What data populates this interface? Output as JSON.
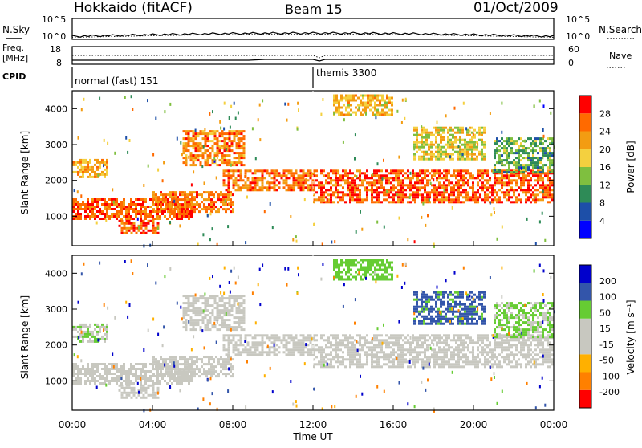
{
  "header": {
    "station": "Hokkaido (fitACF)",
    "beam": "Beam 15",
    "date": "01/Oct/2009"
  },
  "noise_panel": {
    "left_label": "N.Sky",
    "right_label": "N.Search",
    "left_ticks": [
      "10^5",
      "10^0"
    ],
    "right_ticks": [
      "10^5",
      "10^0"
    ]
  },
  "freq_panel": {
    "left_label_1": "Freq.",
    "left_label_2": "[MHz]",
    "right_label": "Nave",
    "left_ticks": [
      "18",
      "8"
    ],
    "right_ticks": [
      "60",
      "0"
    ]
  },
  "cpid_panel": {
    "label": "CPID",
    "modes": [
      {
        "name": "normal (fast) 151",
        "start_hour": 0
      },
      {
        "name": "themis 3300",
        "start_hour": 12
      }
    ]
  },
  "x_axis": {
    "label": "Time UT",
    "ticks": [
      "00:00",
      "04:00",
      "08:00",
      "12:00",
      "16:00",
      "20:00",
      "00:00"
    ]
  },
  "power_panel": {
    "ylabel": "Slant Range [km]",
    "yticks": [
      "4000",
      "3000",
      "2000",
      "1000"
    ],
    "colorbar_label": "Power [dB]",
    "colorbar_ticks": [
      "28",
      "24",
      "20",
      "16",
      "12",
      "8",
      "4"
    ]
  },
  "velocity_panel": {
    "ylabel": "Slant Range [km]",
    "yticks": [
      "4000",
      "3000",
      "2000",
      "1000"
    ],
    "colorbar_label": "Velocity [m s⁻¹]",
    "colorbar_ticks": [
      "200",
      "100",
      "50",
      "15",
      "-15",
      "-50",
      "-100",
      "-200"
    ]
  },
  "chart_data": {
    "type": "heatmap",
    "x_range_hours": [
      0,
      24
    ],
    "y_range_km": [
      180,
      4500
    ],
    "power_colors": [
      "#0000ff",
      "#1d4fa8",
      "#2e8b57",
      "#7fbf3f",
      "#f4d03f",
      "#f39c12",
      "#ff6a00",
      "#ff0000"
    ],
    "velocity_colors": [
      "#ff0000",
      "#ff8000",
      "#ffb000",
      "#c8c8c0",
      "#c8c8c0",
      "#66cc33",
      "#3355aa",
      "#0000cc"
    ],
    "echo_bands": [
      {
        "t0": 0.0,
        "t1": 6.0,
        "r0": 900,
        "r1": 1500,
        "power": 27,
        "vel": 0
      },
      {
        "t0": 2.3,
        "t1": 4.3,
        "r0": 500,
        "r1": 900,
        "power": 26,
        "vel": -10
      },
      {
        "t0": 0.0,
        "t1": 1.7,
        "r0": 2100,
        "r1": 2600,
        "power": 21,
        "vel": 10
      },
      {
        "t0": 4.0,
        "t1": 8.0,
        "r0": 1100,
        "r1": 1700,
        "power": 25,
        "vel": 0
      },
      {
        "t0": 5.5,
        "t1": 8.6,
        "r0": 2400,
        "r1": 3400,
        "power": 24,
        "vel": -5
      },
      {
        "t0": 7.5,
        "t1": 12.0,
        "r0": 1700,
        "r1": 2300,
        "power": 25,
        "vel": 0
      },
      {
        "t0": 12.0,
        "t1": 24.0,
        "r0": 1400,
        "r1": 2300,
        "power": 27,
        "vel": 0
      },
      {
        "t0": 13.0,
        "t1": 16.0,
        "r0": 3800,
        "r1": 4400,
        "power": 20,
        "vel": 30
      },
      {
        "t0": 17.0,
        "t1": 20.5,
        "r0": 2600,
        "r1": 3500,
        "power": 18,
        "vel": 60
      },
      {
        "t0": 21.0,
        "t1": 24.0,
        "r0": 2200,
        "r1": 3200,
        "power": 12,
        "vel": 20
      }
    ]
  }
}
